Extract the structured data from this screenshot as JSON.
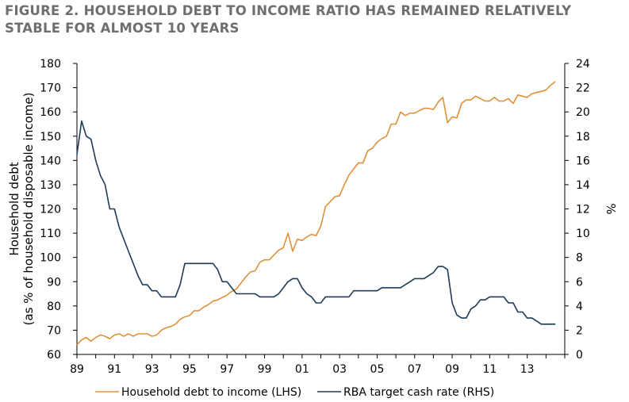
{
  "title": "FIGURE 2. HOUSEHOLD DEBT TO INCOME RATIO HAS REMAINED RELATIVELY STABLE FOR ALMOST 10 YEARS",
  "chart_data": {
    "type": "line",
    "ylabel_left": [
      "Household debt",
      "(as % of household disposable income)"
    ],
    "ylabel_right": "%",
    "xlabel": "",
    "x_ticks": [
      "89",
      "91",
      "93",
      "95",
      "97",
      "99",
      "01",
      "03",
      "05",
      "07",
      "09",
      "11",
      "13"
    ],
    "x_tick_years": [
      1989,
      1991,
      1993,
      1995,
      1997,
      1999,
      2001,
      2003,
      2005,
      2007,
      2009,
      2011,
      2013
    ],
    "xlim": [
      1989,
      2015
    ],
    "ylim_left": [
      60,
      180
    ],
    "yticks_left": [
      60,
      70,
      80,
      90,
      100,
      110,
      120,
      130,
      140,
      150,
      160,
      170,
      180
    ],
    "ylim_right": [
      0,
      24
    ],
    "yticks_right": [
      0,
      2,
      4,
      6,
      8,
      10,
      12,
      14,
      16,
      18,
      20,
      22,
      24
    ],
    "grid": false,
    "legend_position": "bottom",
    "series": [
      {
        "name": "Household debt to income (LHS)",
        "axis": "left",
        "color": "#e0903a",
        "x": [
          1989.0,
          1989.25,
          1989.5,
          1989.75,
          1990.0,
          1990.25,
          1990.5,
          1990.75,
          1991.0,
          1991.25,
          1991.5,
          1991.75,
          1992.0,
          1992.25,
          1992.5,
          1992.75,
          1993.0,
          1993.25,
          1993.5,
          1993.75,
          1994.0,
          1994.25,
          1994.5,
          1994.75,
          1995.0,
          1995.25,
          1995.5,
          1995.75,
          1996.0,
          1996.25,
          1996.5,
          1996.75,
          1997.0,
          1997.25,
          1997.5,
          1997.75,
          1998.0,
          1998.25,
          1998.5,
          1998.75,
          1999.0,
          1999.25,
          1999.5,
          1999.75,
          2000.0,
          2000.25,
          2000.5,
          2000.75,
          2001.0,
          2001.25,
          2001.5,
          2001.75,
          2002.0,
          2002.25,
          2002.5,
          2002.75,
          2003.0,
          2003.25,
          2003.5,
          2003.75,
          2004.0,
          2004.25,
          2004.5,
          2004.75,
          2005.0,
          2005.25,
          2005.5,
          2005.75,
          2006.0,
          2006.25,
          2006.5,
          2006.75,
          2007.0,
          2007.25,
          2007.5,
          2007.75,
          2008.0,
          2008.25,
          2008.5,
          2008.75,
          2009.0,
          2009.25,
          2009.5,
          2009.75,
          2010.0,
          2010.25,
          2010.5,
          2010.75,
          2011.0,
          2011.25,
          2011.5,
          2011.75,
          2012.0,
          2012.25,
          2012.5,
          2012.75,
          2013.0,
          2013.25,
          2013.5,
          2013.75,
          2014.0,
          2014.25,
          2014.5
        ],
        "values": [
          64,
          66,
          67,
          65.5,
          67,
          68,
          67.5,
          66.5,
          68,
          68.5,
          67.5,
          68.5,
          67.5,
          68.5,
          68.5,
          68.5,
          67.5,
          68,
          70,
          71,
          71.5,
          72.5,
          74.5,
          75.5,
          76,
          78,
          78,
          79.5,
          80.5,
          82,
          82.5,
          83.5,
          84.5,
          86,
          87,
          89.5,
          92,
          94,
          94.5,
          98,
          99,
          99,
          101,
          103,
          104,
          110,
          102.5,
          107.5,
          107,
          108.5,
          109.5,
          109,
          113,
          121,
          123,
          125,
          125.5,
          130,
          134,
          136.5,
          139,
          139,
          144,
          145,
          147.5,
          149,
          150,
          155,
          155,
          160,
          158.5,
          159.5,
          159.5,
          160.5,
          161.5,
          161.5,
          161,
          164,
          166,
          155.5,
          158,
          157.5,
          163.5,
          165,
          165,
          166.5,
          165.5,
          164.5,
          164.5,
          166,
          164.5,
          164.5,
          165.5,
          163.5,
          167,
          166.5,
          166,
          167.5,
          168,
          168.5,
          169,
          171,
          172.5
        ]
      },
      {
        "name": "RBA target cash rate (RHS)",
        "axis": "right",
        "color": "#1f3b57",
        "x": [
          1989.0,
          1989.25,
          1989.5,
          1989.75,
          1990.0,
          1990.25,
          1990.5,
          1990.75,
          1991.0,
          1991.25,
          1991.5,
          1991.75,
          1992.0,
          1992.25,
          1992.5,
          1992.75,
          1993.0,
          1993.25,
          1993.5,
          1993.75,
          1994.0,
          1994.25,
          1994.5,
          1994.75,
          1995.0,
          1995.25,
          1995.5,
          1995.75,
          1996.0,
          1996.25,
          1996.5,
          1996.75,
          1997.0,
          1997.25,
          1997.5,
          1997.75,
          1998.0,
          1998.25,
          1998.5,
          1998.75,
          1999.0,
          1999.25,
          1999.5,
          1999.75,
          2000.0,
          2000.25,
          2000.5,
          2000.75,
          2001.0,
          2001.25,
          2001.5,
          2001.75,
          2002.0,
          2002.25,
          2002.5,
          2002.75,
          2003.0,
          2003.25,
          2003.5,
          2003.75,
          2004.0,
          2004.25,
          2004.5,
          2004.75,
          2005.0,
          2005.25,
          2005.5,
          2005.75,
          2006.0,
          2006.25,
          2006.5,
          2006.75,
          2007.0,
          2007.25,
          2007.5,
          2007.75,
          2008.0,
          2008.25,
          2008.5,
          2008.75,
          2009.0,
          2009.25,
          2009.5,
          2009.75,
          2010.0,
          2010.25,
          2010.5,
          2010.75,
          2011.0,
          2011.25,
          2011.5,
          2011.75,
          2012.0,
          2012.25,
          2012.5,
          2012.75,
          2013.0,
          2013.25,
          2013.5,
          2013.75,
          2014.0,
          2014.25,
          2014.5
        ],
        "values": [
          16.5,
          19.25,
          18,
          17.75,
          16,
          14.75,
          14,
          12,
          12,
          10.5,
          9.5,
          8.5,
          7.5,
          6.5,
          5.75,
          5.75,
          5.25,
          5.25,
          4.75,
          4.75,
          4.75,
          4.75,
          5.75,
          7.5,
          7.5,
          7.5,
          7.5,
          7.5,
          7.5,
          7.5,
          7,
          6,
          6,
          5.5,
          5,
          5,
          5,
          5,
          5,
          4.75,
          4.75,
          4.75,
          4.75,
          5,
          5.5,
          6,
          6.25,
          6.25,
          5.5,
          5,
          4.75,
          4.25,
          4.25,
          4.75,
          4.75,
          4.75,
          4.75,
          4.75,
          4.75,
          5.25,
          5.25,
          5.25,
          5.25,
          5.25,
          5.25,
          5.5,
          5.5,
          5.5,
          5.5,
          5.5,
          5.75,
          6,
          6.25,
          6.25,
          6.25,
          6.5,
          6.75,
          7.25,
          7.25,
          7,
          4.25,
          3.25,
          3,
          3,
          3.75,
          4,
          4.5,
          4.5,
          4.75,
          4.75,
          4.75,
          4.75,
          4.25,
          4.25,
          3.5,
          3.5,
          3,
          3,
          2.75,
          2.5,
          2.5,
          2.5,
          2.5
        ]
      }
    ]
  }
}
